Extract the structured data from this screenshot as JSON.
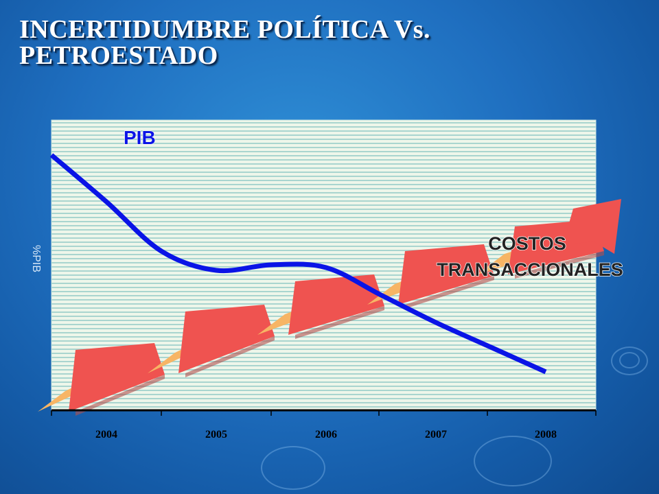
{
  "slide": {
    "title_line1": "INCERTIDUMBRE POLÍTICA Vs.",
    "title_line2": "PETROESTADO",
    "colors": {
      "background": "#1f6fc0",
      "plot_area": "#eef6ea",
      "pib_line": "#0a14e6",
      "arrow_front": "#ef5350",
      "arrow_top": "#f7b565"
    }
  },
  "chart_data": {
    "type": "line",
    "ylabel": "%PIB",
    "xlabel": "",
    "categories": [
      "2004",
      "2005",
      "2006",
      "2007",
      "2008"
    ],
    "grid": true,
    "y_tick_labels": false,
    "series": [
      {
        "name": "PIB",
        "x": [
          2003.5,
          2004.0,
          2004.5,
          2005.0,
          2005.5,
          2006.0,
          2006.5,
          2007.0,
          2007.5,
          2008.0
        ],
        "values": [
          9.3,
          7.6,
          5.8,
          5.1,
          5.3,
          5.2,
          4.2,
          3.2,
          2.3,
          1.4
        ]
      },
      {
        "name": "COSTOS TRANSACCIONALES",
        "representation": "stepped upward arrow",
        "x": [
          2003.5,
          2004.5,
          2005.5,
          2006.5,
          2007.5,
          2008.5
        ],
        "values": [
          0.0,
          1.4,
          2.8,
          3.9,
          5.0,
          5.9
        ]
      }
    ]
  }
}
